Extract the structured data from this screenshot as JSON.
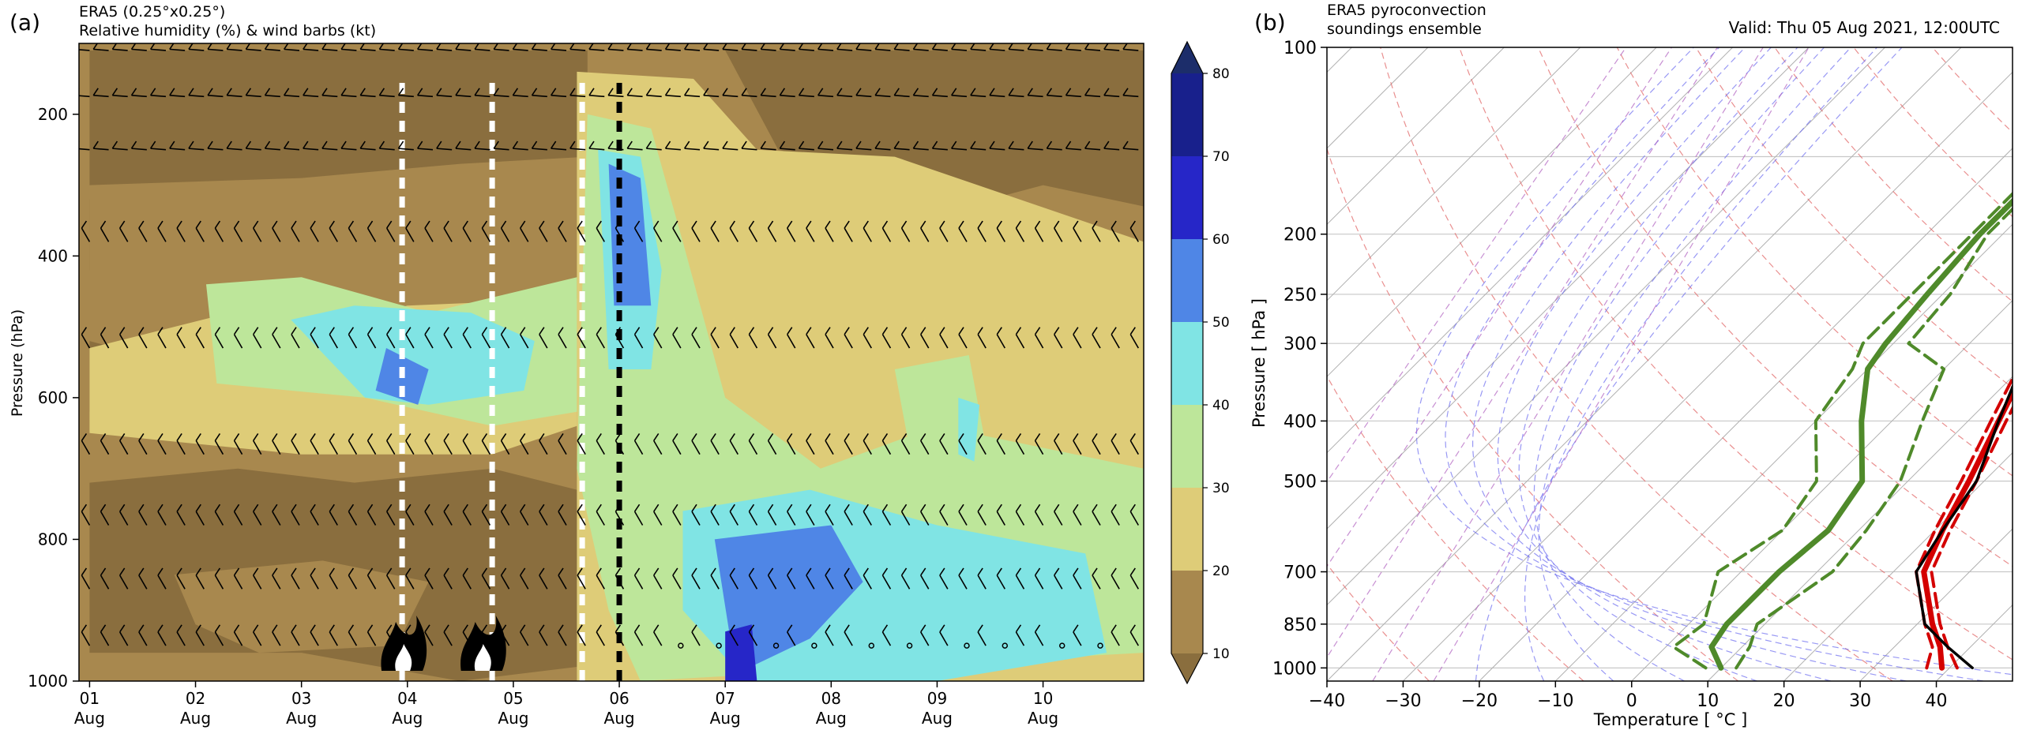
{
  "chart_data": [
    {
      "type": "heatmap",
      "panel_label": "(a)",
      "title": "ERA5 (0.25°x0.25°)",
      "subtitle": "Relative humidity (%) & wind barbs (kt)",
      "ylabel": "Pressure (hPa)",
      "ylim": [
        1000,
        100
      ],
      "y_ticks": [
        "200",
        "400",
        "600",
        "800",
        "1000"
      ],
      "x_ticks": [
        {
          "day": "01",
          "month": "Aug"
        },
        {
          "day": "02",
          "month": "Aug"
        },
        {
          "day": "03",
          "month": "Aug"
        },
        {
          "day": "04",
          "month": "Aug"
        },
        {
          "day": "05",
          "month": "Aug"
        },
        {
          "day": "06",
          "month": "Aug"
        },
        {
          "day": "07",
          "month": "Aug"
        },
        {
          "day": "08",
          "month": "Aug"
        },
        {
          "day": "09",
          "month": "Aug"
        },
        {
          "day": "10",
          "month": "Aug"
        }
      ],
      "colorbar": {
        "ticks": [
          "10",
          "20",
          "30",
          "40",
          "50",
          "60",
          "70",
          "80"
        ],
        "colors": [
          "#a8884e",
          "#decc78",
          "#bde69a",
          "#80e4e4",
          "#4f86e6",
          "#2626c8",
          "#18208c"
        ],
        "under_color": "#8a6e3e",
        "over_color": "#1c2d6a"
      },
      "vertical_lines": [
        {
          "day": 3.95,
          "color": "#ffffff"
        },
        {
          "day": 4.8,
          "color": "#ffffff"
        },
        {
          "day": 5.65,
          "color": "#ffffff"
        },
        {
          "day": 6.0,
          "color": "#000000"
        }
      ],
      "fire_days": [
        3.95,
        4.7
      ],
      "barb_levels": [
        110,
        175,
        250,
        380,
        530,
        680,
        780,
        870,
        950
      ]
    },
    {
      "type": "line",
      "panel_label": "(b)",
      "title": "ERA5 pyroconvection\nsoundings ensemble",
      "valid_text": "Valid: Thu 05 Aug 2021, 12:00UTC",
      "xlabel": "Temperature [ °C ]",
      "ylabel": "Pressure [ hPa ]",
      "xlim": [
        -40,
        50
      ],
      "ylim": [
        1050,
        100
      ],
      "x_ticks": [
        "−40",
        "−30",
        "−20",
        "−10",
        "0",
        "10",
        "20",
        "30",
        "40"
      ],
      "y_ticks": [
        "100",
        "200",
        "250",
        "300",
        "400",
        "500",
        "700",
        "850",
        "1000"
      ],
      "series": [
        {
          "role": "temperature-main",
          "color": "#d40000",
          "p": [
            1000,
            925,
            850,
            700,
            600,
            500,
            400,
            300,
            250,
            200,
            150,
            100
          ],
          "t": [
            39,
            36,
            32,
            24,
            21,
            18,
            14,
            9,
            8,
            9,
            9,
            10
          ]
        },
        {
          "role": "temperature-member",
          "color": "#d40000",
          "p": [
            1000,
            925,
            850,
            700,
            600,
            500,
            400,
            300,
            250,
            200,
            150,
            100
          ],
          "t": [
            41,
            37,
            33,
            25,
            22,
            19,
            15,
            10,
            9,
            11,
            11,
            12
          ]
        },
        {
          "role": "temperature-member",
          "color": "#d40000",
          "p": [
            1000,
            925,
            850,
            700,
            600,
            500,
            400,
            300,
            250,
            200,
            150,
            100
          ],
          "t": [
            37,
            35,
            31,
            23,
            20,
            17,
            13,
            8,
            7,
            8,
            8,
            9
          ]
        },
        {
          "role": "dewpoint-main",
          "color": "#4f8a2a",
          "p": [
            1000,
            925,
            850,
            700,
            600,
            500,
            400,
            330,
            300,
            250,
            200,
            150,
            100
          ],
          "t": [
            10,
            6,
            5,
            5,
            6,
            4,
            -4,
            -10,
            -11,
            -12,
            -13,
            -13,
            -2
          ]
        },
        {
          "role": "dewpoint-member",
          "color": "#4f8a2a",
          "p": [
            1000,
            925,
            850,
            700,
            600,
            500,
            400,
            330,
            300,
            250,
            200,
            150,
            100
          ],
          "t": [
            12,
            11,
            9,
            12,
            11,
            9,
            4,
            0,
            -8,
            -9,
            -12,
            -12,
            -1
          ]
        },
        {
          "role": "dewpoint-member",
          "color": "#4f8a2a",
          "p": [
            1000,
            925,
            850,
            700,
            600,
            500,
            400,
            330,
            300,
            250,
            200,
            150,
            100
          ],
          "t": [
            8,
            1,
            2,
            -3,
            0,
            -2,
            -10,
            -12,
            -14,
            -14,
            -14,
            -14,
            -3
          ]
        },
        {
          "role": "parcel",
          "color": "#000000",
          "p": [
            1000,
            925,
            850,
            700,
            600,
            500,
            400,
            300,
            250,
            200,
            150,
            100
          ],
          "t": [
            43,
            37,
            31,
            23,
            21,
            19,
            14,
            8,
            2,
            -6,
            -15,
            -22
          ]
        }
      ]
    }
  ]
}
